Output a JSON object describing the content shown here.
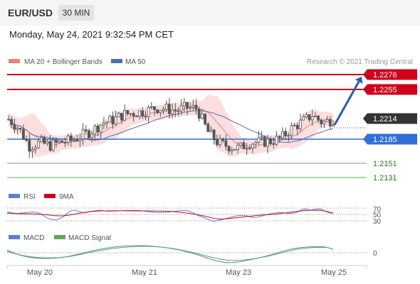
{
  "header": {
    "symbol": "EUR/USD",
    "timeframe": "30 MIN"
  },
  "datetime": "Monday, May 24, 2021 9:32:54 PM CET",
  "legend": {
    "ma20": "MA 20 + Bollinger Bands",
    "ma50": "MA 50",
    "copyright": "Research © 2021 Trading Central",
    "rsi": "RSI",
    "rsi_ma": "9MA",
    "macd": "MACD",
    "macd_signal": "MACD Signal"
  },
  "colors": {
    "candle": "#555555",
    "ma20": "#e8817f",
    "bollinger": "#fbdede",
    "ma50": "#4f6fa8",
    "resistance": "#d0021b",
    "support_blue": "#2f6fd8",
    "support_green": "#5aaa50",
    "arrow": "#2b5aa8",
    "last_price": "#333333"
  },
  "chart_data": {
    "type": "candlestick",
    "x_ticks": [
      "May 20",
      "May 21",
      "May 23",
      "May 25"
    ],
    "price_range": [
      1.2123,
      1.2283
    ],
    "last_price": "1.2214",
    "levels": [
      {
        "label": "1.2276",
        "value": 1.2276,
        "kind": "resistance"
      },
      {
        "label": "1.2255",
        "value": 1.2255,
        "kind": "resistance"
      },
      {
        "label": "1.2185",
        "value": 1.2185,
        "kind": "pivot"
      },
      {
        "label": "1.2151",
        "value": 1.2151,
        "kind": "support"
      },
      {
        "label": "1.2131",
        "value": 1.2131,
        "kind": "support"
      }
    ],
    "price_path": [
      1.2213,
      1.22,
      1.2175,
      1.218,
      1.2176,
      1.2181,
      1.2183,
      1.219,
      1.2197,
      1.2208,
      1.2212,
      1.222,
      1.2222,
      1.2224,
      1.2229,
      1.2228,
      1.2225,
      1.223,
      1.2228,
      1.2196,
      1.218,
      1.2175,
      1.2172,
      1.218,
      1.2181,
      1.2182,
      1.2186,
      1.22,
      1.2209,
      1.2219,
      1.2208,
      1.2213
    ],
    "rsi": {
      "levels": [
        "70",
        "50",
        "30"
      ]
    },
    "macd": {
      "levels": [
        "0"
      ]
    }
  }
}
